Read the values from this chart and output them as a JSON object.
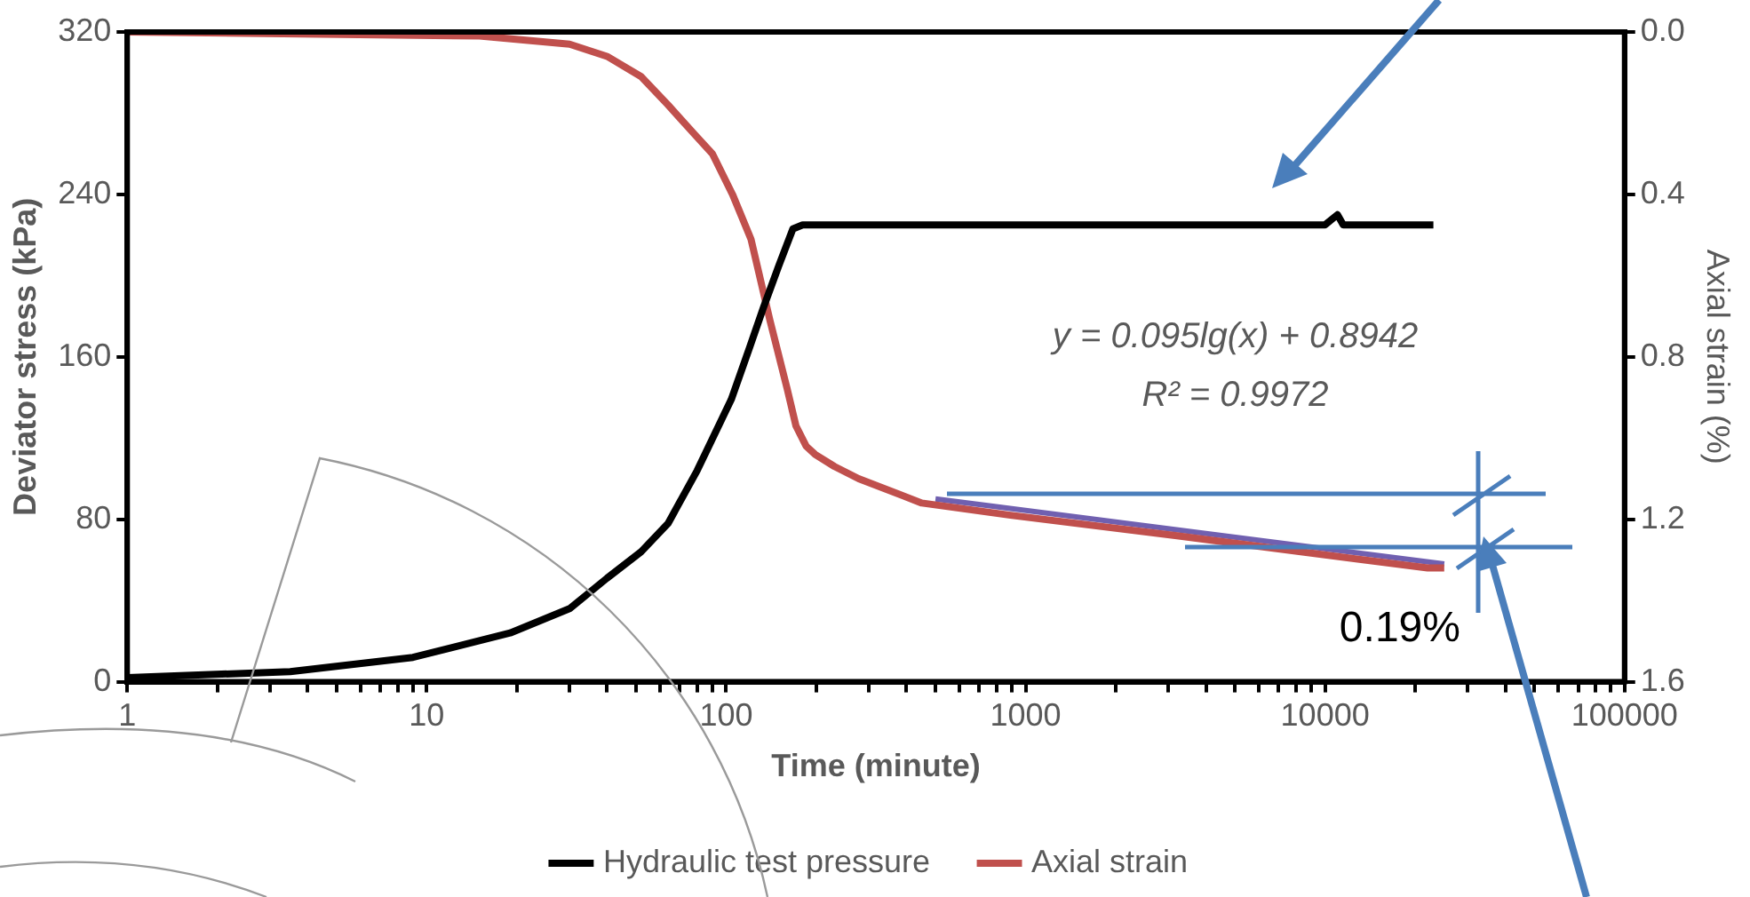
{
  "chart_data": {
    "type": "line",
    "xlabel": "Time (minute)",
    "ylabel": "Deviator stress (kPa)",
    "y2label": "Axial strain (%)",
    "log": "x",
    "legend": "bottom",
    "xlim": [
      1,
      100000
    ],
    "xticks": [
      1,
      {
        "value": 2,
        "label": null
      },
      {
        "value": 3,
        "label": null
      },
      {
        "value": 4,
        "label": null
      },
      {
        "value": 5,
        "label": null
      },
      {
        "value": 6,
        "label": null
      },
      {
        "value": 7,
        "label": null
      },
      {
        "value": 8,
        "label": null
      },
      {
        "value": 9,
        "label": null
      },
      10,
      {
        "value": 20,
        "label": null
      },
      {
        "value": 30,
        "label": null
      },
      {
        "value": 40,
        "label": null
      },
      {
        "value": 50,
        "label": null
      },
      {
        "value": 60,
        "label": null
      },
      {
        "value": 70,
        "label": null
      },
      {
        "value": 80,
        "label": null
      },
      {
        "value": 90,
        "label": null
      },
      100,
      {
        "value": 200,
        "label": null
      },
      {
        "value": 300,
        "label": null
      },
      {
        "value": 400,
        "label": null
      },
      {
        "value": 500,
        "label": null
      },
      {
        "value": 600,
        "label": null
      },
      {
        "value": 700,
        "label": null
      },
      {
        "value": 800,
        "label": null
      },
      {
        "value": 900,
        "label": null
      },
      1000,
      {
        "value": 2000,
        "label": null
      },
      {
        "value": 3000,
        "label": null
      },
      {
        "value": 4000,
        "label": null
      },
      {
        "value": 5000,
        "label": null
      },
      {
        "value": 6000,
        "label": null
      },
      {
        "value": 7000,
        "label": null
      },
      {
        "value": 8000,
        "label": null
      },
      {
        "value": 9000,
        "label": null
      },
      10000,
      {
        "value": 20000,
        "label": null
      },
      {
        "value": 30000,
        "label": null
      },
      {
        "value": 40000,
        "label": null
      },
      {
        "value": 50000,
        "label": null
      },
      {
        "value": 60000,
        "label": null
      },
      {
        "value": 70000,
        "label": null
      },
      {
        "value": 80000,
        "label": null
      },
      {
        "value": 90000,
        "label": null
      },
      100000
    ],
    "ylim": [
      0,
      320
    ],
    "yticks": [
      0,
      80,
      160,
      240,
      320
    ],
    "y2lim": [
      1.6,
      0
    ],
    "y2ticks": [
      {
        "value": 0,
        "label": "0.0"
      },
      0.4,
      0.8,
      1.2,
      1.6
    ],
    "series": [
      {
        "name": "Hydraulic test pressure",
        "color": "#000000",
        "axis": "y",
        "x": [
          1,
          3.5,
          9,
          19,
          30,
          40,
          52,
          64,
          80,
          104,
          120,
          133,
          150,
          167,
          180,
          1000,
          5000,
          10000,
          11000,
          11500,
          15000,
          23000
        ],
        "values": [
          2,
          5,
          12,
          24,
          36,
          51,
          64,
          78,
          104,
          139,
          165,
          184,
          205,
          223,
          225,
          225,
          225,
          225,
          230,
          225,
          225,
          225
        ]
      },
      {
        "name": "Axial strain",
        "color": "#c0504d",
        "axis": "y2",
        "x": [
          1,
          15,
          30,
          40,
          52,
          64,
          78,
          90,
          105,
          121,
          140,
          160,
          171,
          185,
          198,
          230,
          277,
          450,
          890,
          3160,
          8300,
          22000,
          25000
        ],
        "values": [
          0,
          0.01,
          0.03,
          0.06,
          0.11,
          0.18,
          0.25,
          0.3,
          0.4,
          0.51,
          0.71,
          0.88,
          0.97,
          1.02,
          1.04,
          1.07,
          1.1,
          1.16,
          1.19,
          1.24,
          1.28,
          1.32,
          1.32
        ]
      },
      {
        "type": "line",
        "color": "#7060b0",
        "axis": "y2",
        "x": [
          500,
          25000
        ],
        "values": [
          1.15,
          1.31
        ]
      }
    ],
    "annotations": [
      "y = 0.095lg(x) + 0.8942",
      "R² = 0.9972",
      "0.19%"
    ]
  }
}
